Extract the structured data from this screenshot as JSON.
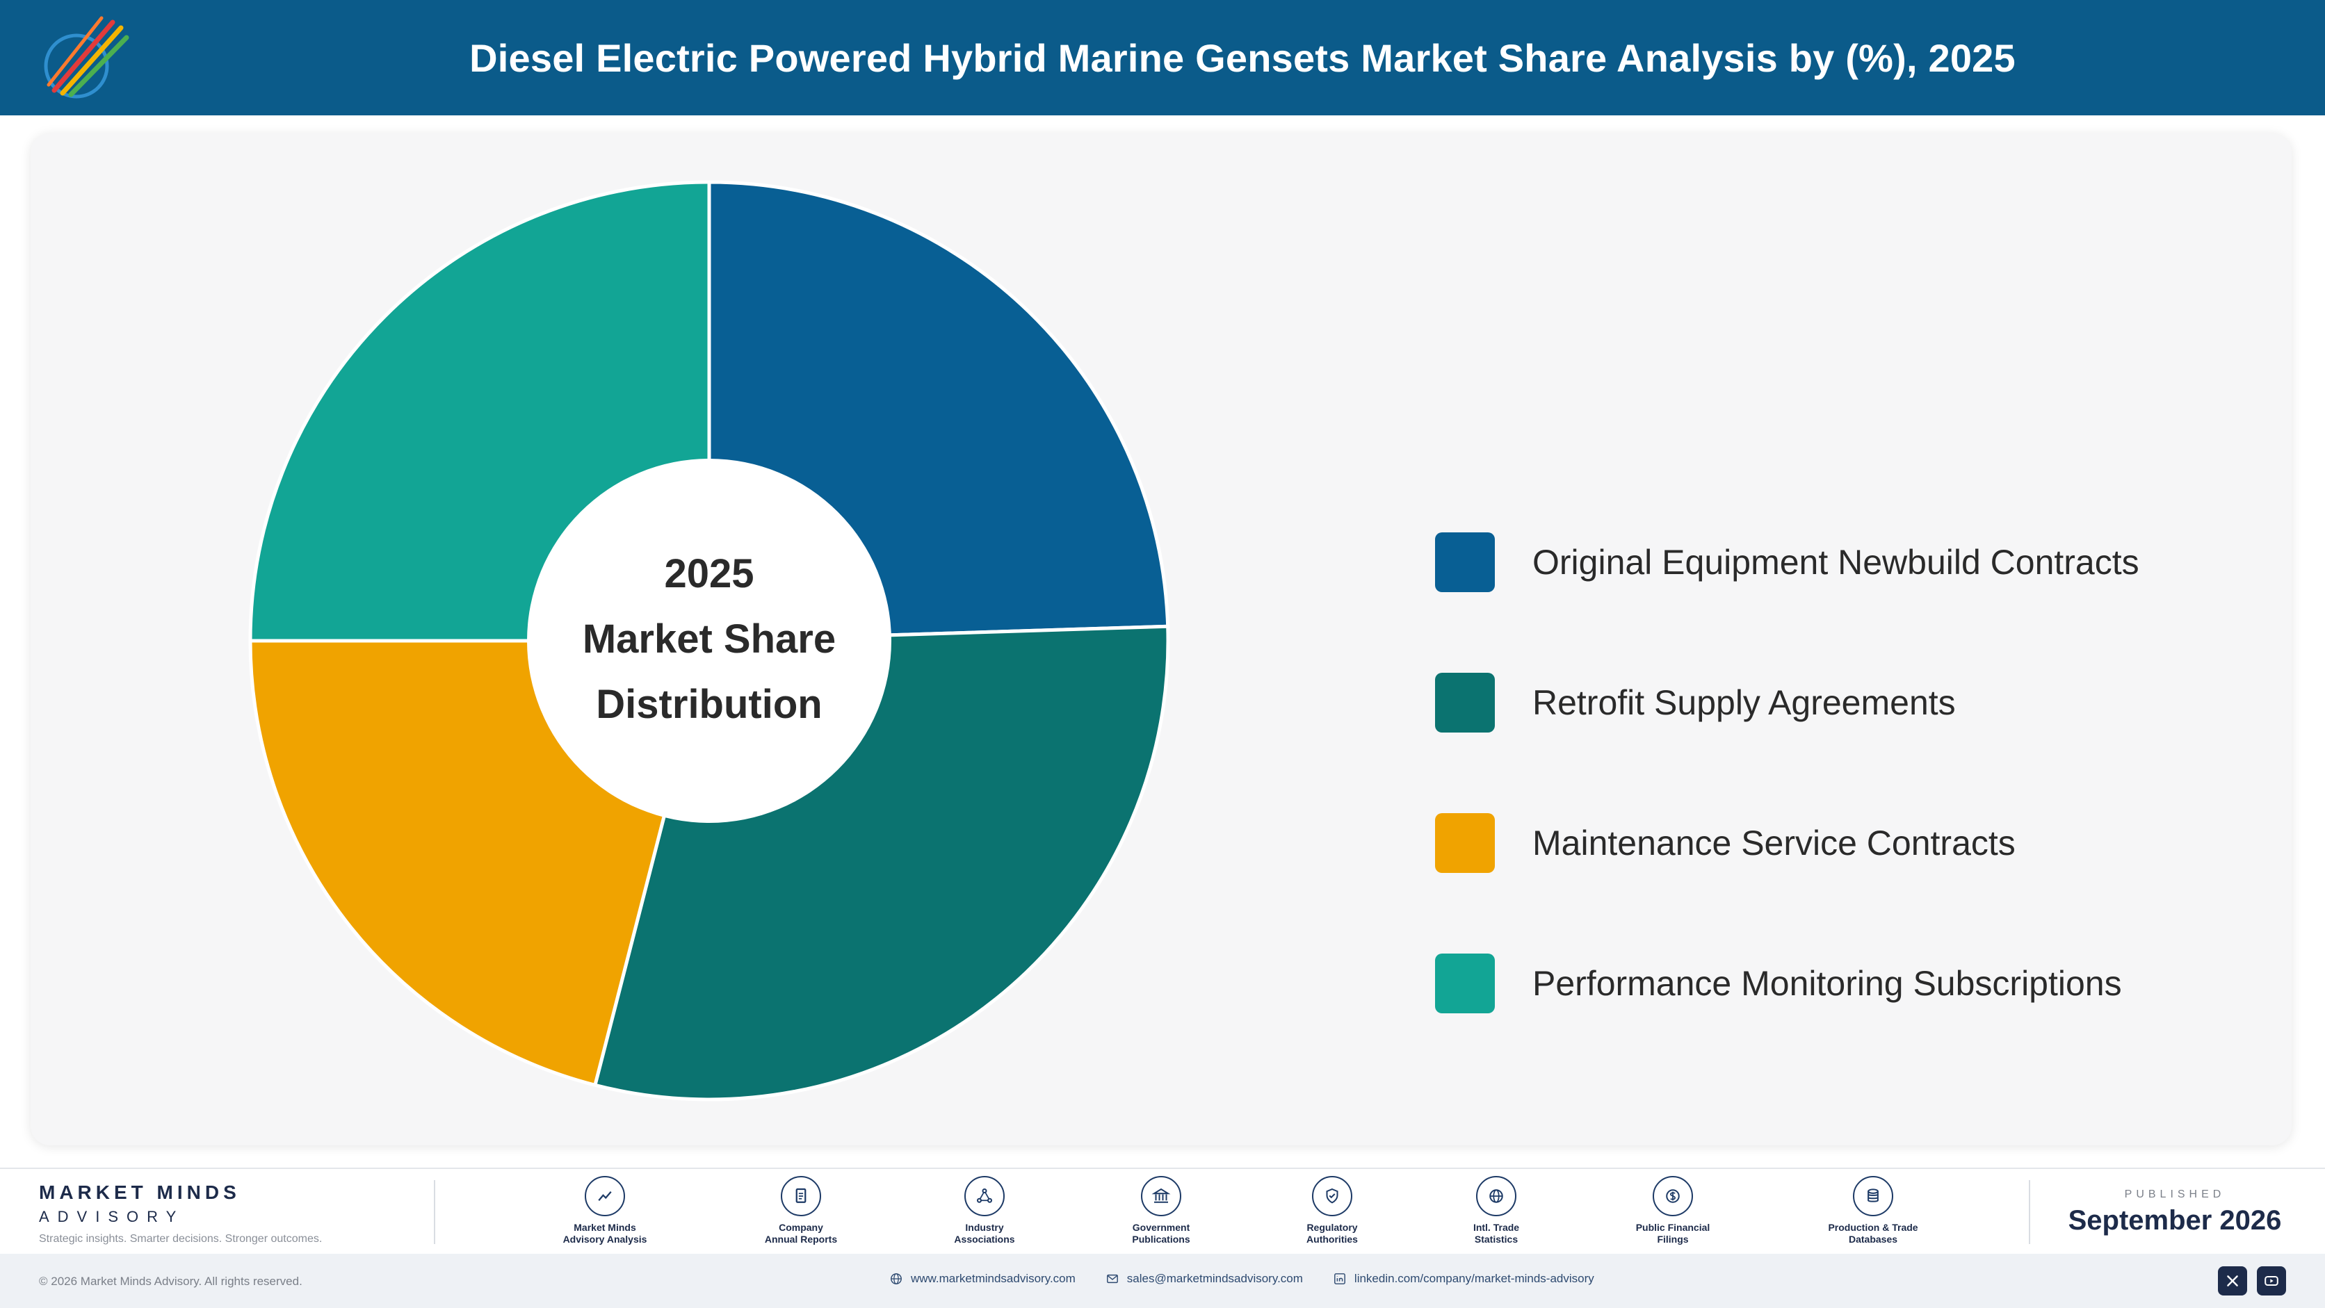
{
  "header": {
    "title": "Diesel Electric Powered Hybrid Marine Gensets Market Share Analysis by (%), 2025"
  },
  "chart_data": {
    "type": "pie",
    "variant": "donut",
    "center_label": [
      "2025",
      "Market Share",
      "Distribution"
    ],
    "categories": [
      "Original Equipment Newbuild Contracts",
      "Retrofit Supply Agreements",
      "Maintenance Service Contracts",
      "Performance Monitoring Subscriptions"
    ],
    "values": [
      24.5,
      29.5,
      21.0,
      25.0
    ],
    "colors": [
      "#085f94",
      "#0b7370",
      "#f0a300",
      "#12a595"
    ],
    "legend_position": "right"
  },
  "footer": {
    "brand_name": "MARKET MINDS",
    "brand_sub": "ADVISORY",
    "brand_tagline": "Strategic insights. Smarter decisions. Stronger outcomes.",
    "sources": [
      {
        "line1": "Market Minds",
        "line2": "Advisory Analysis",
        "icon": "trend-chart-icon"
      },
      {
        "line1": "Company",
        "line2": "Annual Reports",
        "icon": "document-icon"
      },
      {
        "line1": "Industry",
        "line2": "Associations",
        "icon": "network-icon"
      },
      {
        "line1": "Government",
        "line2": "Publications",
        "icon": "government-building-icon"
      },
      {
        "line1": "Regulatory",
        "line2": "Authorities",
        "icon": "shield-check-icon"
      },
      {
        "line1": "Intl. Trade",
        "line2": "Statistics",
        "icon": "globe-icon"
      },
      {
        "line1": "Public Financial",
        "line2": "Filings",
        "icon": "currency-icon"
      },
      {
        "line1": "Production & Trade",
        "line2": "Databases",
        "icon": "database-icon"
      }
    ],
    "published_label": "PUBLISHED",
    "published_date": "September 2026"
  },
  "bottom_bar": {
    "copyright": "© 2026 Market Minds Advisory. All rights reserved.",
    "website": "www.marketmindsadvisory.com",
    "email": "sales@marketmindsadvisory.com",
    "linkedin": "linkedin.com/company/market-minds-advisory"
  }
}
